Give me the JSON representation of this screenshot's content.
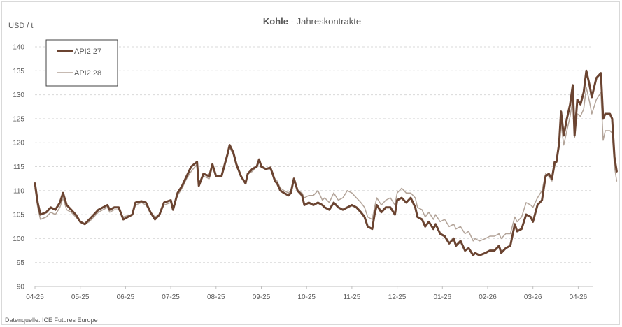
{
  "chart_data": {
    "type": "line",
    "title_bold": "Kohle",
    "title_rest": " - Jahreskontrakte",
    "ylabel": "USD / t",
    "source": "Datenquelle: ICE Futures Europe",
    "ylim": [
      90,
      140
    ],
    "yticks": [
      "90",
      "95",
      "100",
      "105",
      "110",
      "115",
      "120",
      "125",
      "130",
      "135",
      "140"
    ],
    "xticks": [
      "04-25",
      "05-25",
      "06-25",
      "07-25",
      "08-25",
      "09-25",
      "10-25",
      "11-25",
      "12-25",
      "01-26",
      "02-26",
      "03-26",
      "04-26"
    ],
    "xlim": [
      0,
      12.35
    ],
    "grid": "horizontal",
    "legend_position": "top-left",
    "colors": {
      "api2_27": "#6b4431",
      "api2_28": "#b3a499",
      "grid": "#d9d9d9",
      "axis": "#bfbfbf",
      "text": "#595959"
    },
    "series": [
      {
        "name": "API2 27",
        "color": "#6b4431",
        "width": 3,
        "points": [
          [
            0.0,
            111.5
          ],
          [
            0.06,
            107.5
          ],
          [
            0.12,
            105.0
          ],
          [
            0.25,
            105.5
          ],
          [
            0.35,
            106.5
          ],
          [
            0.45,
            106.0
          ],
          [
            0.55,
            107.5
          ],
          [
            0.62,
            109.5
          ],
          [
            0.7,
            107.0
          ],
          [
            0.8,
            106.0
          ],
          [
            0.9,
            105.0
          ],
          [
            1.0,
            103.5
          ],
          [
            1.1,
            103.0
          ],
          [
            1.2,
            104.0
          ],
          [
            1.3,
            105.0
          ],
          [
            1.4,
            106.0
          ],
          [
            1.5,
            106.5
          ],
          [
            1.6,
            107.0
          ],
          [
            1.65,
            106.0
          ],
          [
            1.75,
            106.5
          ],
          [
            1.85,
            106.5
          ],
          [
            1.95,
            104.0
          ],
          [
            2.05,
            104.5
          ],
          [
            2.15,
            105.0
          ],
          [
            2.22,
            107.5
          ],
          [
            2.35,
            107.8
          ],
          [
            2.45,
            107.5
          ],
          [
            2.55,
            105.5
          ],
          [
            2.65,
            104.0
          ],
          [
            2.75,
            105.0
          ],
          [
            2.85,
            107.5
          ],
          [
            3.0,
            108.0
          ],
          [
            3.05,
            106.0
          ],
          [
            3.15,
            109.5
          ],
          [
            3.25,
            111.0
          ],
          [
            3.35,
            113.0
          ],
          [
            3.45,
            115.0
          ],
          [
            3.58,
            116.0
          ],
          [
            3.62,
            111.0
          ],
          [
            3.72,
            113.5
          ],
          [
            3.85,
            113.0
          ],
          [
            3.92,
            115.5
          ],
          [
            4.0,
            113.0
          ],
          [
            4.12,
            113.0
          ],
          [
            4.25,
            117.5
          ],
          [
            4.3,
            119.5
          ],
          [
            4.38,
            118.0
          ],
          [
            4.45,
            115.5
          ],
          [
            4.55,
            113.0
          ],
          [
            4.65,
            111.5
          ],
          [
            4.7,
            113.5
          ],
          [
            4.8,
            114.5
          ],
          [
            4.9,
            115.0
          ],
          [
            4.95,
            116.5
          ],
          [
            5.0,
            115.0
          ],
          [
            5.1,
            114.5
          ],
          [
            5.2,
            114.8
          ],
          [
            5.25,
            113.5
          ],
          [
            5.3,
            112.0
          ],
          [
            5.35,
            111.5
          ],
          [
            5.42,
            110.0
          ],
          [
            5.5,
            109.5
          ],
          [
            5.6,
            109.0
          ],
          [
            5.65,
            109.5
          ],
          [
            5.72,
            112.5
          ],
          [
            5.8,
            110.0
          ],
          [
            5.9,
            109.0
          ],
          [
            5.95,
            107.0
          ],
          [
            6.05,
            107.5
          ],
          [
            6.15,
            107.0
          ],
          [
            6.25,
            107.5
          ],
          [
            6.35,
            107.0
          ],
          [
            6.4,
            106.5
          ],
          [
            6.5,
            106.0
          ],
          [
            6.6,
            107.5
          ],
          [
            6.7,
            106.5
          ],
          [
            6.8,
            106.0
          ],
          [
            6.9,
            106.5
          ],
          [
            7.0,
            107.0
          ],
          [
            7.1,
            106.5
          ],
          [
            7.2,
            105.5
          ],
          [
            7.28,
            104.5
          ],
          [
            7.35,
            102.5
          ],
          [
            7.45,
            102.0
          ],
          [
            7.5,
            105.0
          ],
          [
            7.55,
            107.0
          ],
          [
            7.65,
            105.5
          ],
          [
            7.75,
            106.5
          ],
          [
            7.85,
            106.5
          ],
          [
            7.95,
            105.0
          ],
          [
            8.0,
            108.0
          ],
          [
            8.1,
            108.5
          ],
          [
            8.2,
            107.5
          ],
          [
            8.3,
            108.5
          ],
          [
            8.4,
            106.5
          ],
          [
            8.45,
            104.5
          ],
          [
            8.55,
            104.0
          ],
          [
            8.62,
            102.5
          ],
          [
            8.7,
            103.5
          ],
          [
            8.8,
            102.0
          ],
          [
            8.85,
            103.0
          ],
          [
            8.95,
            101.0
          ],
          [
            9.05,
            100.5
          ],
          [
            9.15,
            99.0
          ],
          [
            9.25,
            100.0
          ],
          [
            9.3,
            98.5
          ],
          [
            9.4,
            99.5
          ],
          [
            9.5,
            97.5
          ],
          [
            9.58,
            98.0
          ],
          [
            9.68,
            96.5
          ],
          [
            9.72,
            97.0
          ],
          [
            9.82,
            96.5
          ],
          [
            9.95,
            97.0
          ],
          [
            10.05,
            97.5
          ],
          [
            10.15,
            97.5
          ],
          [
            10.25,
            98.5
          ],
          [
            10.3,
            97.0
          ],
          [
            10.4,
            98.0
          ],
          [
            10.5,
            98.5
          ],
          [
            10.6,
            103.0
          ],
          [
            10.65,
            101.5
          ],
          [
            10.75,
            102.0
          ],
          [
            10.85,
            105.0
          ],
          [
            10.95,
            104.5
          ],
          [
            11.0,
            103.5
          ],
          [
            11.1,
            107.0
          ],
          [
            11.2,
            108.0
          ],
          [
            11.28,
            113.0
          ],
          [
            11.35,
            113.5
          ],
          [
            11.42,
            112.5
          ],
          [
            11.48,
            116.0
          ],
          [
            11.52,
            116.0
          ],
          [
            11.58,
            120.0
          ],
          [
            11.62,
            126.5
          ],
          [
            11.68,
            121.5
          ],
          [
            11.75,
            125.0
          ],
          [
            11.82,
            128.0
          ],
          [
            11.88,
            132.0
          ],
          [
            11.92,
            121.5
          ],
          [
            11.98,
            129.0
          ],
          [
            12.05,
            128.0
          ],
          [
            12.12,
            130.5
          ],
          [
            12.18,
            135.0
          ],
          [
            12.25,
            132.0
          ],
          [
            12.3,
            129.5
          ],
          [
            12.4,
            133.5
          ],
          [
            12.5,
            134.5
          ],
          [
            12.55,
            125.0
          ],
          [
            12.6,
            126.0
          ],
          [
            12.7,
            126.0
          ],
          [
            12.75,
            125.0
          ],
          [
            12.8,
            117.0
          ],
          [
            12.85,
            114.0
          ]
        ]
      },
      {
        "name": "API2 28",
        "color": "#b3a499",
        "width": 1.5,
        "points": [
          [
            0.0,
            110.5
          ],
          [
            0.06,
            106.5
          ],
          [
            0.12,
            104.0
          ],
          [
            0.25,
            104.5
          ],
          [
            0.35,
            105.5
          ],
          [
            0.45,
            105.0
          ],
          [
            0.55,
            106.5
          ],
          [
            0.62,
            108.5
          ],
          [
            0.7,
            106.0
          ],
          [
            0.8,
            105.5
          ],
          [
            0.9,
            104.5
          ],
          [
            1.0,
            103.5
          ],
          [
            1.1,
            103.0
          ],
          [
            1.2,
            103.5
          ],
          [
            1.3,
            104.5
          ],
          [
            1.4,
            105.5
          ],
          [
            1.5,
            106.0
          ],
          [
            1.6,
            106.5
          ],
          [
            1.65,
            105.5
          ],
          [
            1.75,
            106.0
          ],
          [
            1.85,
            106.0
          ],
          [
            1.95,
            104.5
          ],
          [
            2.05,
            104.8
          ],
          [
            2.15,
            105.0
          ],
          [
            2.22,
            107.0
          ],
          [
            2.35,
            107.5
          ],
          [
            2.45,
            107.0
          ],
          [
            2.55,
            105.5
          ],
          [
            2.65,
            104.5
          ],
          [
            2.75,
            105.0
          ],
          [
            2.85,
            107.0
          ],
          [
            3.0,
            107.5
          ],
          [
            3.05,
            106.5
          ],
          [
            3.15,
            109.0
          ],
          [
            3.25,
            110.5
          ],
          [
            3.35,
            112.5
          ],
          [
            3.45,
            114.0
          ],
          [
            3.58,
            115.5
          ],
          [
            3.62,
            111.5
          ],
          [
            3.72,
            113.0
          ],
          [
            3.85,
            112.5
          ],
          [
            3.92,
            115.0
          ],
          [
            4.0,
            113.0
          ],
          [
            4.12,
            113.0
          ],
          [
            4.25,
            117.0
          ],
          [
            4.3,
            119.0
          ],
          [
            4.38,
            117.5
          ],
          [
            4.45,
            115.0
          ],
          [
            4.55,
            113.0
          ],
          [
            4.65,
            111.5
          ],
          [
            4.7,
            113.5
          ],
          [
            4.8,
            114.0
          ],
          [
            4.9,
            115.0
          ],
          [
            4.95,
            116.0
          ],
          [
            5.0,
            115.0
          ],
          [
            5.1,
            114.5
          ],
          [
            5.2,
            114.5
          ],
          [
            5.25,
            113.5
          ],
          [
            5.3,
            112.5
          ],
          [
            5.35,
            112.0
          ],
          [
            5.42,
            110.5
          ],
          [
            5.5,
            110.0
          ],
          [
            5.6,
            109.5
          ],
          [
            5.65,
            110.0
          ],
          [
            5.72,
            112.0
          ],
          [
            5.8,
            110.0
          ],
          [
            5.9,
            109.5
          ],
          [
            5.95,
            108.5
          ],
          [
            6.05,
            109.0
          ],
          [
            6.15,
            109.0
          ],
          [
            6.25,
            110.0
          ],
          [
            6.35,
            108.0
          ],
          [
            6.4,
            108.5
          ],
          [
            6.5,
            107.5
          ],
          [
            6.6,
            109.5
          ],
          [
            6.7,
            108.0
          ],
          [
            6.8,
            108.5
          ],
          [
            6.9,
            110.0
          ],
          [
            7.0,
            109.5
          ],
          [
            7.1,
            108.5
          ],
          [
            7.2,
            107.5
          ],
          [
            7.28,
            106.5
          ],
          [
            7.35,
            104.5
          ],
          [
            7.45,
            104.0
          ],
          [
            7.5,
            106.5
          ],
          [
            7.55,
            108.5
          ],
          [
            7.65,
            107.0
          ],
          [
            7.75,
            108.0
          ],
          [
            7.85,
            108.5
          ],
          [
            7.95,
            107.0
          ],
          [
            8.0,
            109.5
          ],
          [
            8.1,
            110.5
          ],
          [
            8.2,
            109.5
          ],
          [
            8.3,
            109.5
          ],
          [
            8.4,
            108.5
          ],
          [
            8.45,
            106.5
          ],
          [
            8.55,
            106.0
          ],
          [
            8.62,
            104.5
          ],
          [
            8.7,
            105.5
          ],
          [
            8.8,
            104.0
          ],
          [
            8.85,
            105.0
          ],
          [
            8.95,
            103.5
          ],
          [
            9.05,
            104.0
          ],
          [
            9.15,
            102.5
          ],
          [
            9.25,
            103.0
          ],
          [
            9.3,
            102.0
          ],
          [
            9.4,
            102.5
          ],
          [
            9.5,
            101.0
          ],
          [
            9.58,
            101.5
          ],
          [
            9.68,
            99.5
          ],
          [
            9.72,
            100.0
          ],
          [
            9.82,
            99.5
          ],
          [
            9.95,
            100.0
          ],
          [
            10.05,
            100.5
          ],
          [
            10.15,
            100.5
          ],
          [
            10.25,
            101.0
          ],
          [
            10.3,
            100.0
          ],
          [
            10.4,
            101.0
          ],
          [
            10.5,
            101.0
          ],
          [
            10.6,
            104.5
          ],
          [
            10.65,
            103.5
          ],
          [
            10.75,
            104.5
          ],
          [
            10.85,
            107.5
          ],
          [
            10.95,
            107.0
          ],
          [
            11.0,
            106.5
          ],
          [
            11.1,
            108.5
          ],
          [
            11.2,
            110.0
          ],
          [
            11.28,
            113.5
          ],
          [
            11.35,
            113.0
          ],
          [
            11.42,
            112.0
          ],
          [
            11.48,
            115.0
          ],
          [
            11.52,
            116.0
          ],
          [
            11.58,
            119.0
          ],
          [
            11.62,
            124.0
          ],
          [
            11.68,
            119.5
          ],
          [
            11.75,
            122.5
          ],
          [
            11.82,
            125.5
          ],
          [
            11.88,
            129.0
          ],
          [
            11.92,
            121.0
          ],
          [
            11.98,
            126.0
          ],
          [
            12.05,
            125.5
          ],
          [
            12.12,
            127.0
          ],
          [
            12.18,
            131.5
          ],
          [
            12.25,
            128.5
          ],
          [
            12.3,
            126.0
          ],
          [
            12.4,
            129.0
          ],
          [
            12.5,
            130.5
          ],
          [
            12.55,
            120.5
          ],
          [
            12.6,
            122.5
          ],
          [
            12.7,
            122.5
          ],
          [
            12.75,
            122.0
          ],
          [
            12.8,
            115.0
          ],
          [
            12.85,
            112.0
          ]
        ]
      }
    ]
  }
}
